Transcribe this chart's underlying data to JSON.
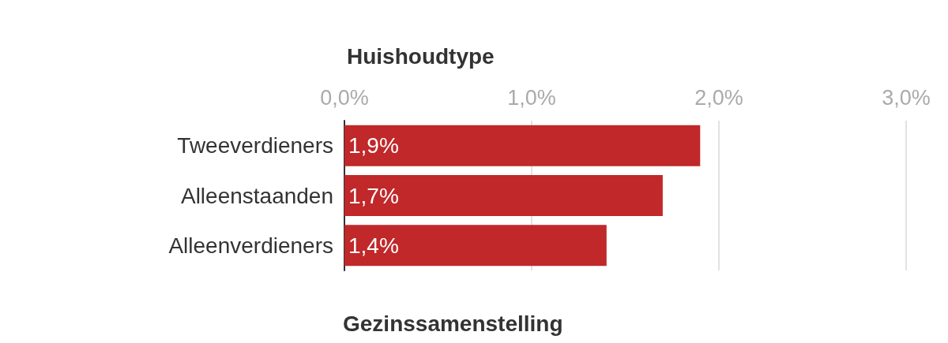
{
  "chart_data": {
    "type": "bar",
    "orientation": "horizontal",
    "title": "Huishoudtype",
    "categories": [
      "Tweeverdieners",
      "Alleenstaanden",
      "Alleenverdieners"
    ],
    "values": [
      1.9,
      1.7,
      1.4
    ],
    "color": "#c0282a",
    "value_labels": [
      "1,9%",
      "1,7%",
      "1,4%"
    ],
    "xlim": [
      0,
      3
    ],
    "xticks": [
      {
        "value": 0,
        "label": "0,0%"
      },
      {
        "value": 1,
        "label": "1,0%"
      },
      {
        "value": 2,
        "label": "2,0%"
      },
      {
        "value": 3,
        "label": "3,0%"
      }
    ],
    "grid": "x",
    "annotations": [
      "Gezinssamenstelling"
    ]
  }
}
